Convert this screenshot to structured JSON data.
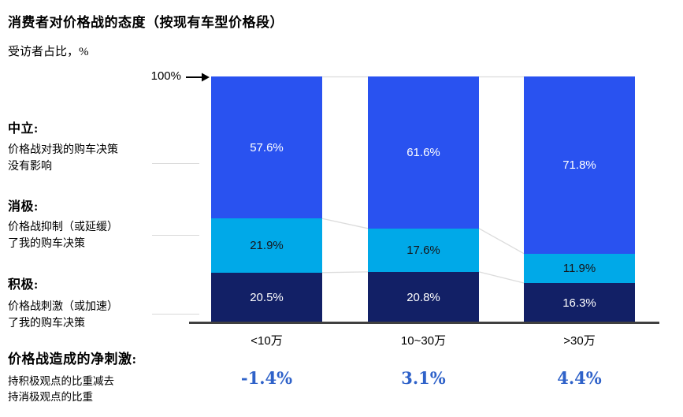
{
  "title": "消费者对价格战的态度（按现有车型价格段）",
  "subtitle": "受访者占比，%",
  "axis_marker": "100%",
  "colors": {
    "neutral": "#2952F0",
    "negative": "#00A9E8",
    "positive": "#122066",
    "net_value": "#2F62C9",
    "baseline": "#404040",
    "connector": "#dcdcdc"
  },
  "legend": [
    {
      "heading": "中立:",
      "desc_lines": [
        "价格战对我的购车决策",
        "没有影响"
      ]
    },
    {
      "heading": "消极:",
      "desc_lines": [
        "价格战抑制（或延缓）",
        "了我的购车决策"
      ]
    },
    {
      "heading": "积极:",
      "desc_lines": [
        "价格战刺激（或加速）",
        "了我的购车决策"
      ]
    }
  ],
  "net_section": {
    "heading": "价格战造成的净刺激:",
    "desc_lines": [
      "持积极观点的比重减去",
      "持消极观点的比重"
    ],
    "values": [
      "-1.4%",
      "3.1%",
      "4.4%"
    ]
  },
  "chart_data": {
    "type": "bar",
    "stacked": true,
    "categories": [
      "<10万",
      "10~30万",
      ">30万"
    ],
    "series": [
      {
        "key": "neutral",
        "name": "中立",
        "values": [
          57.6,
          61.6,
          71.8
        ],
        "labels": [
          "57.6%",
          "61.6%",
          "71.8%"
        ],
        "color": "#2952F0",
        "label_color": "#ffffff"
      },
      {
        "key": "negative",
        "name": "消极",
        "values": [
          21.9,
          17.6,
          11.9
        ],
        "labels": [
          "21.9%",
          "17.6%",
          "11.9%"
        ],
        "color": "#00A9E8",
        "label_color": "#16161a"
      },
      {
        "key": "positive",
        "name": "积极",
        "values": [
          20.5,
          20.8,
          16.3
        ],
        "labels": [
          "20.5%",
          "20.8%",
          "16.3%"
        ],
        "color": "#122066",
        "label_color": "#ffffff"
      }
    ],
    "ylabel": "受访者占比，%",
    "ylim": [
      0,
      100
    ],
    "grid": false,
    "net_values": [
      -1.4,
      3.1,
      4.4
    ]
  }
}
